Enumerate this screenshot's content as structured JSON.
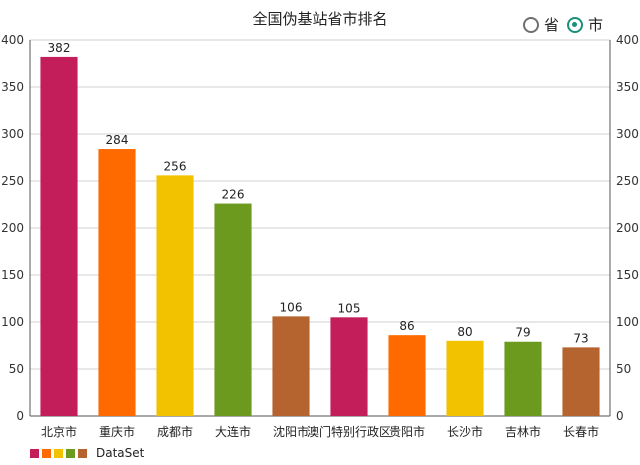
{
  "title": "全国伪基站省市排名",
  "toggle": {
    "options": [
      {
        "label": "省",
        "checked": false
      },
      {
        "label": "市",
        "checked": true
      }
    ]
  },
  "legend": {
    "label": "DataSet",
    "colors": [
      "#c41e5a",
      "#ff6a00",
      "#f2c200",
      "#6b9a1e",
      "#b5642f"
    ]
  },
  "chart_data": {
    "type": "bar",
    "categories": [
      "北京市",
      "重庆市",
      "成都市",
      "大连市",
      "沈阳市",
      "澳门特别行政区",
      "贵阳市",
      "长沙市",
      "吉林市",
      "长春市"
    ],
    "series": [
      {
        "name": "DataSet",
        "values": [
          382,
          284,
          256,
          226,
          106,
          105,
          86,
          80,
          79,
          73
        ]
      }
    ],
    "colors": [
      "#c41e5a",
      "#ff6a00",
      "#f2c200",
      "#6b9a1e",
      "#b5642f",
      "#c41e5a",
      "#ff6a00",
      "#f2c200",
      "#6b9a1e",
      "#b5642f"
    ],
    "ylim": [
      0,
      400
    ],
    "yticks": [
      0,
      50,
      100,
      150,
      200,
      250,
      300,
      350,
      400
    ],
    "grid": true,
    "legend_position": "bottom-left"
  }
}
